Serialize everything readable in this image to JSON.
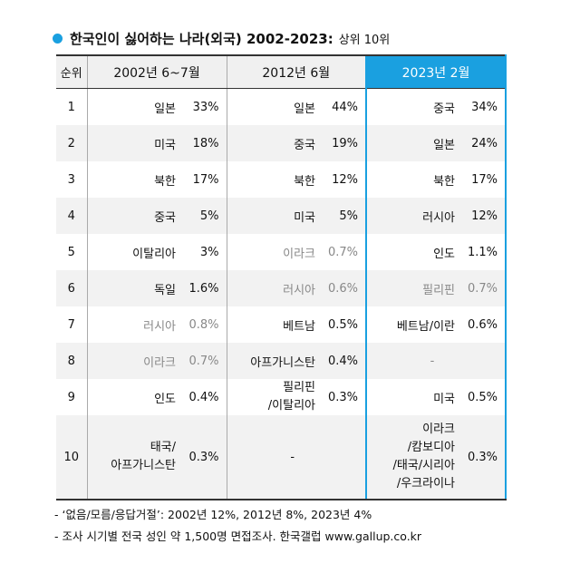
{
  "title": {
    "main": "한국인이 싫어하는 나라(외국) 2002-2023:",
    "sub": "상위 10위"
  },
  "table": {
    "headers": {
      "rank": "순위",
      "col1": "2002년 6~7월",
      "col2": "2012년 6월",
      "col3": "2023년 2월"
    },
    "rows": [
      {
        "rank": "1",
        "a_name": "일본",
        "a_pct": "33%",
        "b_name": "일본",
        "b_pct": "44%",
        "c_name": "중국",
        "c_pct": "34%"
      },
      {
        "rank": "2",
        "a_name": "미국",
        "a_pct": "18%",
        "b_name": "중국",
        "b_pct": "19%",
        "c_name": "일본",
        "c_pct": "24%"
      },
      {
        "rank": "3",
        "a_name": "북한",
        "a_pct": "17%",
        "b_name": "북한",
        "b_pct": "12%",
        "c_name": "북한",
        "c_pct": "17%"
      },
      {
        "rank": "4",
        "a_name": "중국",
        "a_pct": "5%",
        "b_name": "미국",
        "b_pct": "5%",
        "c_name": "러시아",
        "c_pct": "12%"
      },
      {
        "rank": "5",
        "a_name": "이탈리아",
        "a_pct": "3%",
        "b_name": "이라크",
        "b_pct": "0.7%",
        "c_name": "인도",
        "c_pct": "1.1%"
      },
      {
        "rank": "6",
        "a_name": "독일",
        "a_pct": "1.6%",
        "b_name": "러시아",
        "b_pct": "0.6%",
        "c_name": "필리핀",
        "c_pct": "0.7%"
      },
      {
        "rank": "7",
        "a_name": "러시아",
        "a_pct": "0.8%",
        "b_name": "베트남",
        "b_pct": "0.5%",
        "c_name": "베트남/이란",
        "c_pct": "0.6%"
      },
      {
        "rank": "8",
        "a_name": "이라크",
        "a_pct": "0.7%",
        "b_name": "아프가니스탄",
        "b_pct": "0.4%",
        "c_name": "-",
        "c_pct": ""
      },
      {
        "rank": "9",
        "a_name": "인도",
        "a_pct": "0.4%",
        "b_name_l1": "필리핀",
        "b_name_l2": "/이탈리아",
        "b_pct": "0.3%",
        "c_name": "미국",
        "c_pct": "0.5%"
      },
      {
        "rank": "10",
        "a_name_l1": "태국/",
        "a_name_l2": "아프가니스탄",
        "a_pct": "0.3%",
        "b_name": "-",
        "c_name_l1": "이라크",
        "c_name_l2": "/캄보디아",
        "c_name_l3": "/태국/시리아",
        "c_name_l4": "/우크라이나",
        "c_pct": "0.3%"
      }
    ]
  },
  "notes": [
    "- ‘없음/모름/응답거절’: 2002년 12%, 2012년 8%, 2023년 4%",
    "- 조사 시기별 전국 성인 약 1,500명 면접조사. 한국갤럽 www.gallup.co.kr"
  ]
}
